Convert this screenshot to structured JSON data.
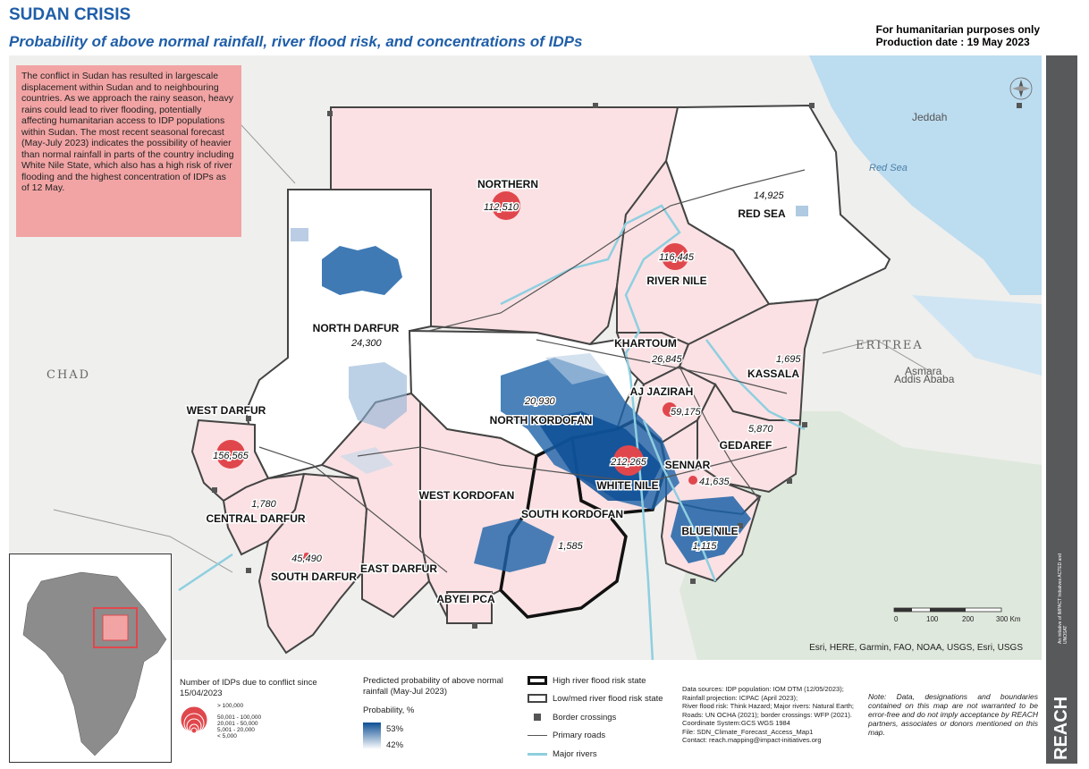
{
  "header": {
    "title": "SUDAN CRISIS",
    "subtitle": "Probability of above normal rainfall, river flood risk, and concentrations of IDPs",
    "purpose": "For humanitarian purposes only",
    "production_date": "Production date : 19 May 2023"
  },
  "intro": "The conflict in Sudan has resulted in largescale displacement within Sudan and to neighbouring countries. As we approach the rainy season, heavy rains could lead to river flooding, potentially affecting humanitarian access to IDP populations within Sudan. The most recent seasonal forecast (May-July 2023) indicates the possibility of heavier than normal rainfall in parts of the country including White Nile State, which also has a high risk of river flooding and the highest concentration of IDPs as of 12 May.",
  "states": [
    {
      "name": "NORTHERN",
      "idps": "112,510"
    },
    {
      "name": "RIVER NILE",
      "idps": "116,445"
    },
    {
      "name": "RED SEA",
      "idps": "14,925"
    },
    {
      "name": "NORTH DARFUR",
      "idps": "24,300"
    },
    {
      "name": "KHARTOUM",
      "idps": "26,845"
    },
    {
      "name": "KASSALA",
      "idps": "1,695"
    },
    {
      "name": "AJ JAZIRAH",
      "idps": "59,175"
    },
    {
      "name": "NORTH KORDOFAN",
      "idps": "20,930"
    },
    {
      "name": "WEST DARFUR",
      "idps": "156,565"
    },
    {
      "name": "GEDAREF",
      "idps": "5,870"
    },
    {
      "name": "WHITE NILE",
      "idps": "212,265"
    },
    {
      "name": "SENNAR",
      "idps": "41,635"
    },
    {
      "name": "WEST KORDOFAN",
      "idps": ""
    },
    {
      "name": "CENTRAL DARFUR",
      "idps": "1,780"
    },
    {
      "name": "SOUTH KORDOFAN",
      "idps": "1,585"
    },
    {
      "name": "BLUE NILE",
      "idps": "1,115"
    },
    {
      "name": "SOUTH DARFUR",
      "idps": "45,490"
    },
    {
      "name": "EAST DARFUR",
      "idps": ""
    },
    {
      "name": "ABYEI PCA",
      "idps": ""
    }
  ],
  "geo_labels": {
    "chad": "CHAD",
    "eritrea": "ERITREA",
    "jeddah": "Jeddah",
    "red_sea": "Red Sea",
    "asmara": "Asmara",
    "addis": "Addis Ababa"
  },
  "scale": {
    "ticks": [
      "0",
      "100",
      "200",
      "300 Km"
    ]
  },
  "credits": "Esri, HERE, Garmin, FAO, NOAA, USGS, Esri, USGS",
  "legend": {
    "idp_title": "Number of IDPs due to conflict since 15/04/2023",
    "idp_classes": [
      "> 100,000",
      "50,001 - 100,000",
      "20,001 - 50,000",
      "5,001 - 20,000",
      "< 5,000"
    ],
    "rain_title": "Predicted probability of above normal rainfall (May-Jul 2023)",
    "prob_label": "Probability, %",
    "prob_high": "53%",
    "prob_low": "42%",
    "high_flood": "High river flood risk state",
    "low_flood": "Low/med river flood risk state",
    "border": "Border crossings",
    "roads": "Primary roads",
    "rivers": "Major rivers"
  },
  "sources": [
    "Data sources: IDP population: IOM DTM (12/05/2023);",
    "Rainfall projection: ICPAC (April 2023);",
    "River flood risk: Think Hazard; Major rivers: Natural Earth;",
    "Roads: UN OCHA (2021); border crossings: WFP (2021).",
    "Coordinate System:GCS WGS 1984",
    "File: SDN_Climate_Forecast_Access_Map1",
    "Contact: reach.mapping@impact-initiatives.org"
  ],
  "note": "Note: Data, designations and boundaries contained on this map are not warranted to be error-free and do not imply acceptance by REACH partners, associates or donors mentioned on this map.",
  "reach": {
    "word": "REACH",
    "small": "An initiative of IMPACT Initiatives ACTED and UNOSAT"
  },
  "colors": {
    "title_blue": "#1f5ea8",
    "high_pink": "#fbe1e4",
    "idp_red": "#e0474c",
    "rain_dark": "#0d4f95",
    "intro_bg": "#f2a4a4",
    "river": "#8ecfe0",
    "sea": "#bcdcf0"
  }
}
